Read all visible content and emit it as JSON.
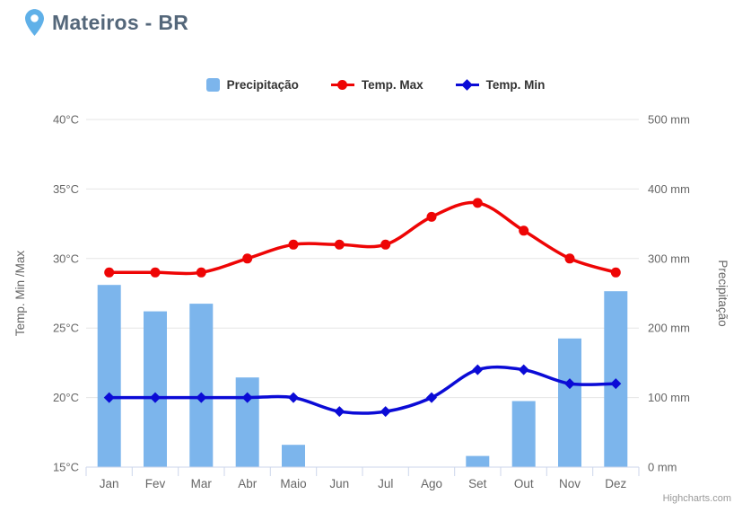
{
  "header": {
    "title": "Mateiros - BR"
  },
  "legend": {
    "items": [
      {
        "label": "Precipitação",
        "marker": "column",
        "color": "#7cb5ec"
      },
      {
        "label": "Temp. Max",
        "marker": "line-circle",
        "color": "#ee0505"
      },
      {
        "label": "Temp. Min",
        "marker": "line-diamond",
        "color": "#0b0bd6"
      }
    ]
  },
  "chart_data": {
    "type": "mixed",
    "title": "Mateiros - BR",
    "categories": [
      "Jan",
      "Fev",
      "Mar",
      "Abr",
      "Maio",
      "Jun",
      "Jul",
      "Ago",
      "Set",
      "Out",
      "Nov",
      "Dez"
    ],
    "series": [
      {
        "name": "Precipitação",
        "type": "column",
        "axis": "right",
        "color": "#7cb5ec",
        "values": [
          262,
          224,
          235,
          129,
          32,
          0,
          0,
          0,
          16,
          95,
          185,
          253
        ]
      },
      {
        "name": "Temp. Max",
        "type": "spline",
        "axis": "left",
        "color": "#ee0505",
        "marker": "circle",
        "values": [
          29,
          29,
          29,
          30,
          31,
          31,
          31,
          33,
          34,
          32,
          30,
          29
        ]
      },
      {
        "name": "Temp. Min",
        "type": "spline",
        "axis": "left",
        "color": "#0b0bd6",
        "marker": "diamond",
        "values": [
          20,
          20,
          20,
          20,
          20,
          19,
          19,
          20,
          22,
          22,
          21,
          21
        ]
      }
    ],
    "y_left": {
      "title": "Temp. Min /Max",
      "min": 15,
      "max": 40,
      "tick_step": 5,
      "suffix": "°C"
    },
    "y_right": {
      "title": "Precipitação",
      "min": 0,
      "max": 500,
      "tick_step": 100,
      "suffix": " mm"
    },
    "grid": true,
    "legend_position": "top",
    "colors": {
      "grid_line": "#e6e6e6",
      "axis_line": "#ccd6eb",
      "tick_text": "#666666",
      "title_text": "#54677a"
    }
  },
  "credits": {
    "label": "Highcharts.com"
  }
}
